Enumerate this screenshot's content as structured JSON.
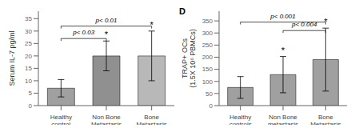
{
  "chart_data": [
    {
      "type": "bar",
      "categories": [
        "Healthy\ncontrol",
        "Non Bone\nMetastasis",
        "Bone\nMetastasis"
      ],
      "values": [
        7,
        20,
        20
      ],
      "errors": [
        3.5,
        6,
        10
      ],
      "ylabel": "Serum IL-7 pg/ml",
      "ylim": [
        0,
        38
      ],
      "yticks": [
        0,
        5,
        10,
        15,
        20,
        25,
        30,
        35
      ],
      "colors": [
        "#a0a0a0",
        "#909090",
        "#b8b8b8"
      ],
      "grid": false,
      "annotations": [
        {
          "text": "p< 0.03",
          "from": "Healthy\ncontrol",
          "to": "Non Bone\nMetastasis",
          "y": 27
        },
        {
          "text": "p< 0.01",
          "from": "Healthy\ncontrol",
          "to": "Bone\nMetastasis",
          "y": 32
        },
        {
          "text": "*",
          "x": "Non Bone\nMetastasis",
          "y": 27
        },
        {
          "text": "*",
          "x": "Bone\nMetastasis",
          "y": 31
        }
      ]
    },
    {
      "type": "bar",
      "title": "D",
      "categories": [
        "Healthy\ncontrols",
        "Non Bone\nmetastasis",
        "Bone\nMetastasis"
      ],
      "values": [
        75,
        128,
        190
      ],
      "errors": [
        45,
        75,
        130
      ],
      "ylabel": "TRAP+ OCs\n(1.5X 10⁶ PBMCs)",
      "ylim": [
        0,
        390
      ],
      "yticks": [
        0,
        50,
        100,
        150,
        200,
        250,
        300,
        350
      ],
      "color": "#a0a0a0",
      "grid": false,
      "annotations": [
        {
          "text": "p< 0.001",
          "from": "Healthy\ncontrols",
          "to": "Bone\nMetastasis",
          "y": 345
        },
        {
          "text": "p< 0.004",
          "from": "Non Bone\nmetastasis",
          "to": "Bone\nMetastasis",
          "y": 310
        },
        {
          "text": "*",
          "x": "Non Bone\nmetastasis",
          "y": 210
        },
        {
          "text": "*",
          "x": "Bone\nMetastasis",
          "y": 330
        }
      ]
    }
  ]
}
